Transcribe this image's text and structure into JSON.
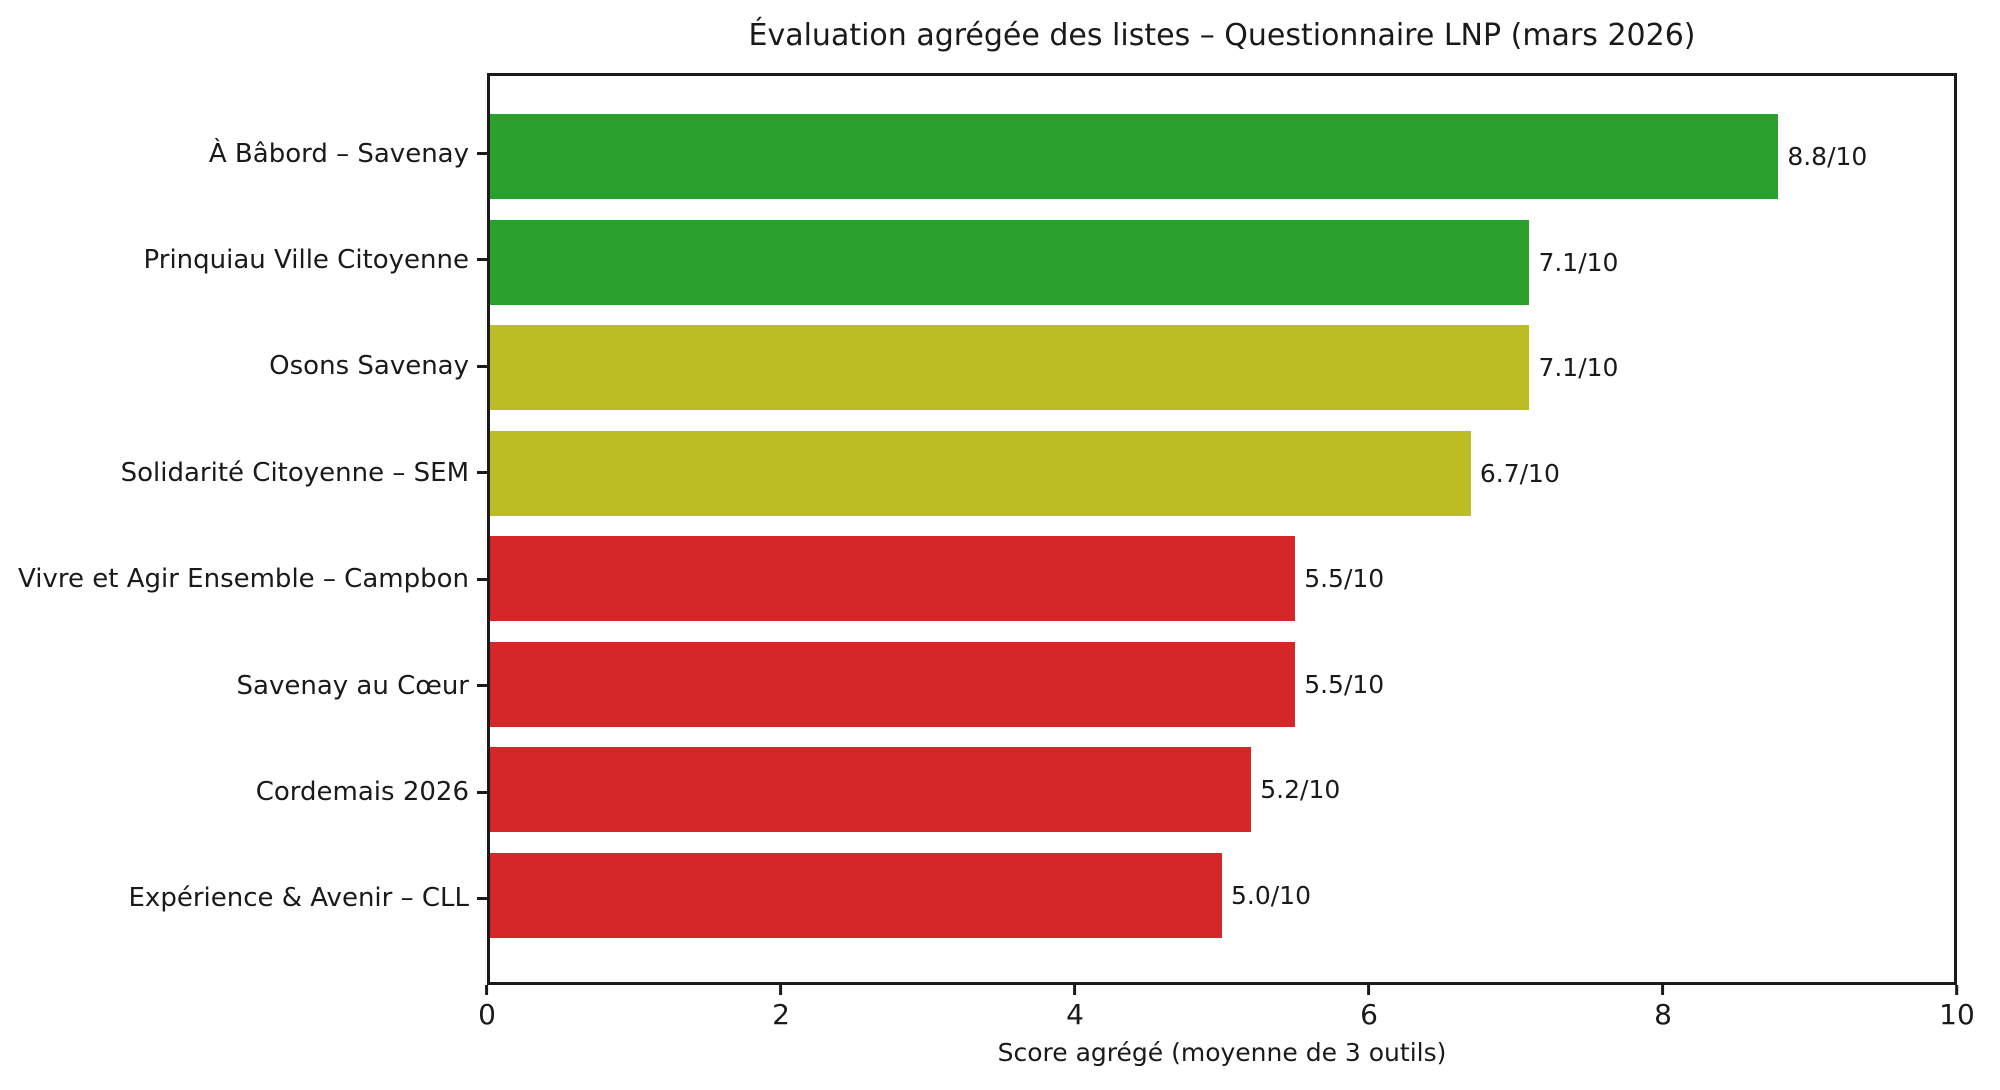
{
  "chart_data": {
    "type": "bar",
    "orientation": "horizontal",
    "title": "Évaluation agrégée des listes – Questionnaire LNP (mars 2026)",
    "xlabel": "Score agrégé (moyenne de 3 outils)",
    "xlim": [
      0,
      10
    ],
    "x_ticks": [
      0,
      2,
      4,
      6,
      8,
      10
    ],
    "grid": false,
    "legend": "none",
    "background_color": "#ffffff",
    "spine_color": "#1a1a1a",
    "categories": [
      "À Bâbord – Savenay",
      "Prinquiau Ville Citoyenne",
      "Osons Savenay",
      "Solidarité Citoyenne – SEM",
      "Vivre et Agir Ensemble – Campbon",
      "Savenay au Cœur",
      "Cordemais 2026",
      "Expérience & Avenir – CLL"
    ],
    "values": [
      8.8,
      7.1,
      7.1,
      6.7,
      5.5,
      5.5,
      5.2,
      5.0
    ],
    "value_labels": [
      "8.8/10",
      "7.1/10",
      "7.1/10",
      "6.7/10",
      "5.5/10",
      "5.5/10",
      "5.2/10",
      "5.0/10"
    ],
    "bar_colors": [
      "#2ca02c",
      "#2ca02c",
      "#bcbd22",
      "#bcbd22",
      "#d62728",
      "#d62728",
      "#d62728",
      "#d62728"
    ],
    "status_colors": {
      "green": "#2ca02c",
      "yellow": "#bcbd22",
      "red": "#d62728"
    }
  }
}
